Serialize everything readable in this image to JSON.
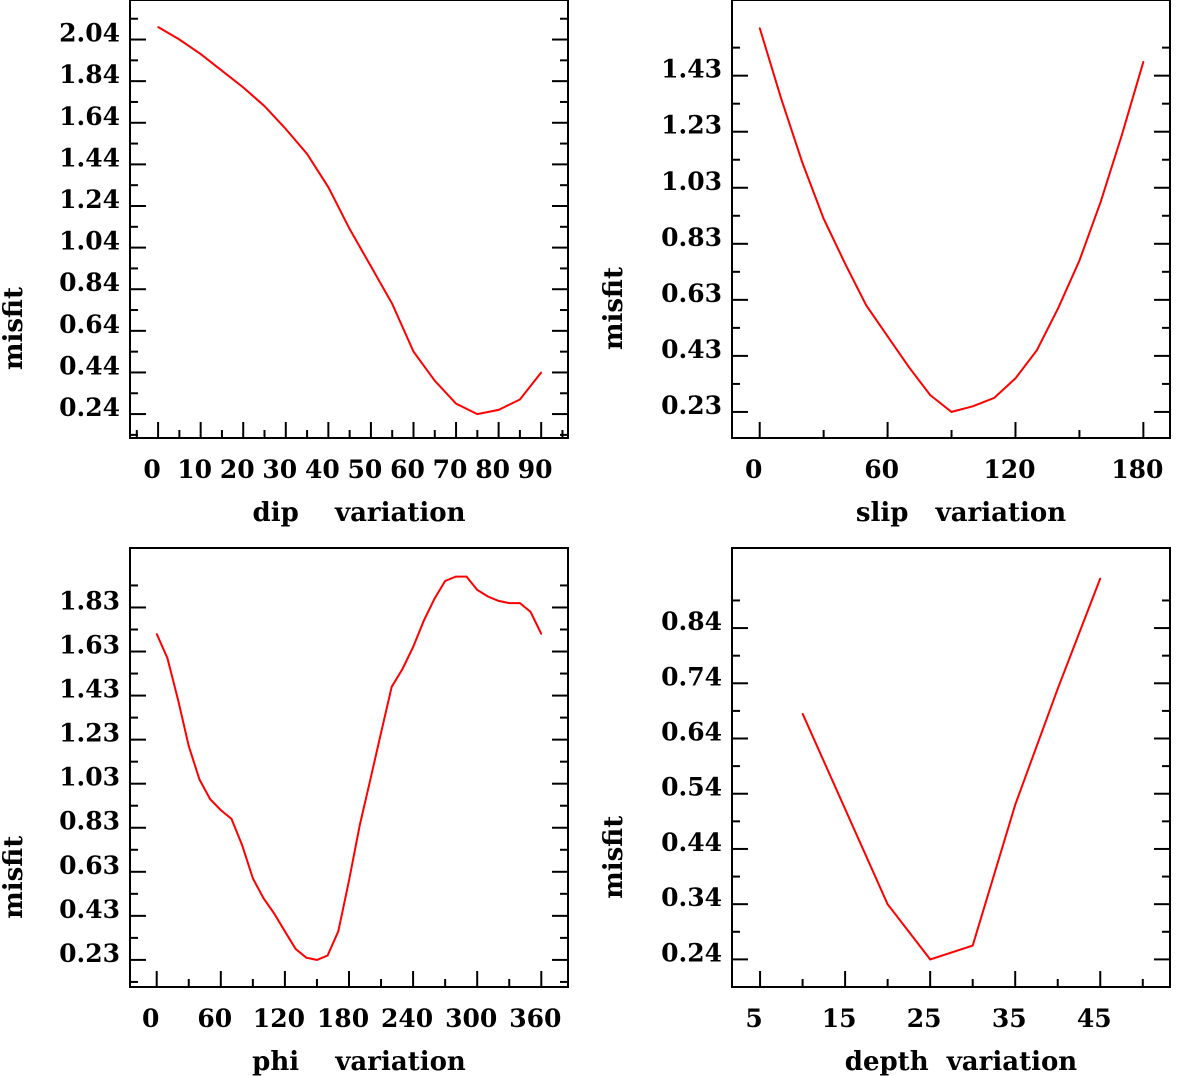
{
  "chart_data": [
    {
      "type": "line",
      "title": "",
      "xlabel": "dip    variation",
      "ylabel": "misfit",
      "xlim": [
        -6.6,
        96.3
      ],
      "ylim": [
        0.125,
        2.23
      ],
      "xticks": [
        0,
        10,
        20,
        30,
        40,
        50,
        60,
        70,
        80,
        90
      ],
      "xtick_labels": [
        "0",
        "10",
        "20",
        "30",
        "40",
        "50",
        "60",
        "70",
        "80",
        "90"
      ],
      "yticks": [
        0.24,
        0.44,
        0.64,
        0.84,
        1.04,
        1.24,
        1.44,
        1.64,
        1.84,
        2.04
      ],
      "ytick_labels": [
        "0.24",
        "0.44",
        "0.64",
        "0.84",
        "1.04",
        "1.24",
        "1.44",
        "1.64",
        "1.84",
        "2.04"
      ],
      "grid": false,
      "color": "#ff0000",
      "x": [
        0,
        5,
        10,
        15,
        20,
        25,
        30,
        35,
        40,
        45,
        50,
        55,
        60,
        65,
        70,
        75,
        80,
        85,
        90
      ],
      "y": [
        2.1,
        2.04,
        1.97,
        1.89,
        1.81,
        1.72,
        1.61,
        1.49,
        1.33,
        1.13,
        0.95,
        0.77,
        0.54,
        0.4,
        0.29,
        0.24,
        0.26,
        0.31,
        0.44
      ]
    },
    {
      "type": "line",
      "title": "",
      "xlabel": "slip   variation",
      "ylabel": "misfit",
      "xlim": [
        -13,
        192.5
      ],
      "ylim": [
        0.137,
        1.7
      ],
      "xticks": [
        0,
        60,
        120,
        180
      ],
      "xtick_labels": [
        "0",
        "60",
        "120",
        "180"
      ],
      "yticks": [
        0.23,
        0.43,
        0.63,
        0.83,
        1.03,
        1.23,
        1.43
      ],
      "ytick_labels": [
        "0.23",
        "0.43",
        "0.63",
        "0.83",
        "1.03",
        "1.23",
        "1.43"
      ],
      "grid": false,
      "color": "#ff0000",
      "x": [
        0,
        10,
        20,
        30,
        40,
        50,
        60,
        70,
        80,
        90,
        100,
        110,
        120,
        130,
        140,
        150,
        160,
        170,
        180
      ],
      "y": [
        1.6,
        1.35,
        1.12,
        0.92,
        0.76,
        0.61,
        0.5,
        0.39,
        0.29,
        0.23,
        0.25,
        0.28,
        0.35,
        0.45,
        0.6,
        0.77,
        0.98,
        1.22,
        1.48
      ]
    },
    {
      "type": "line",
      "title": "",
      "xlabel": "phi    variation",
      "ylabel": "misfit",
      "xlim": [
        -25,
        385
      ],
      "ylim": [
        0.107,
        2.1
      ],
      "xticks": [
        0,
        60,
        120,
        180,
        240,
        300,
        360
      ],
      "xtick_labels": [
        "0",
        "60",
        "120",
        "180",
        "240",
        "300",
        "360"
      ],
      "yticks": [
        0.23,
        0.43,
        0.63,
        0.83,
        1.03,
        1.23,
        1.43,
        1.63,
        1.83
      ],
      "ytick_labels": [
        "0.23",
        "0.43",
        "0.63",
        "0.83",
        "1.03",
        "1.23",
        "1.43",
        "1.63",
        "1.83"
      ],
      "grid": false,
      "color": "#ff0000",
      "x": [
        0,
        10,
        20,
        30,
        40,
        50,
        60,
        70,
        80,
        90,
        100,
        110,
        120,
        130,
        140,
        150,
        160,
        170,
        180,
        190,
        200,
        210,
        220,
        230,
        240,
        250,
        260,
        270,
        280,
        290,
        300,
        310,
        320,
        330,
        340,
        350,
        360
      ],
      "y": [
        1.71,
        1.6,
        1.41,
        1.2,
        1.05,
        0.96,
        0.91,
        0.87,
        0.75,
        0.6,
        0.51,
        0.44,
        0.36,
        0.28,
        0.24,
        0.23,
        0.25,
        0.36,
        0.59,
        0.84,
        1.05,
        1.26,
        1.47,
        1.55,
        1.65,
        1.77,
        1.87,
        1.95,
        1.97,
        1.97,
        1.91,
        1.88,
        1.86,
        1.85,
        1.85,
        1.81,
        1.71
      ]
    },
    {
      "type": "line",
      "title": "",
      "xlabel": "depth  variation",
      "ylabel": "misfit",
      "xlim": [
        1.7,
        53.2
      ],
      "ylim": [
        0.19,
        0.985
      ],
      "xticks": [
        5,
        15,
        25,
        35,
        45
      ],
      "xtick_labels": [
        "5",
        "15",
        "25",
        "35",
        "45"
      ],
      "yticks": [
        0.24,
        0.34,
        0.44,
        0.54,
        0.64,
        0.74,
        0.84
      ],
      "ytick_labels": [
        "0.24",
        "0.34",
        "0.44",
        "0.54",
        "0.64",
        "0.74",
        "0.84"
      ],
      "grid": false,
      "color": "#ff0000",
      "x": [
        10,
        20,
        25,
        30,
        35,
        40,
        45
      ],
      "y": [
        0.685,
        0.34,
        0.24,
        0.265,
        0.52,
        0.73,
        0.93
      ]
    }
  ]
}
